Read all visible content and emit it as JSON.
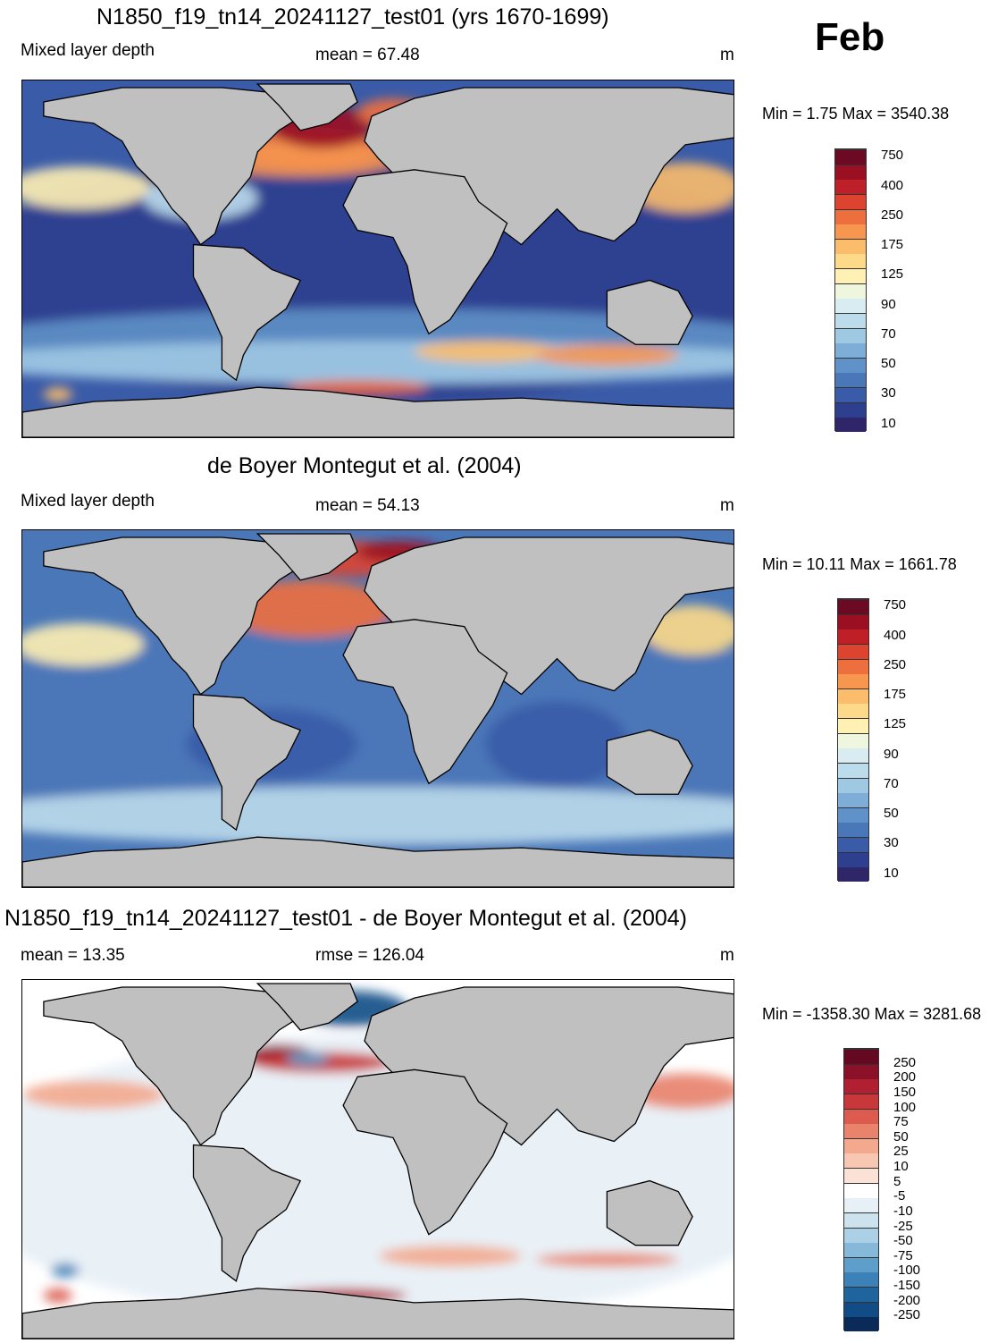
{
  "month": "Feb",
  "panels": [
    {
      "title": "N1850_f19_tn14_20241127_test01 (yrs 1670-1699)",
      "left_label": "Mixed layer depth",
      "center_label": "mean =  67.48",
      "unit": "m",
      "minmax": "Min =   1.75 Max = 3540.38"
    },
    {
      "title": "de Boyer Montegut et al. (2004)",
      "left_label": "Mixed layer depth",
      "center_label": "mean =  54.13",
      "unit": "m",
      "minmax": "Min =  10.11 Max = 1661.78"
    },
    {
      "title": "N1850_f19_tn14_20241127_test01 - de Boyer Montegut et al. (2004)",
      "left_label": "mean =  13.35",
      "center_label": "rmse = 126.04",
      "unit": "m",
      "minmax": "Min = -1358.30 Max = 3281.68"
    }
  ],
  "colorbars": {
    "absolute": {
      "colors": [
        "#2e2668",
        "#2f3f8f",
        "#3a5ba8",
        "#4a77b8",
        "#5f92c8",
        "#7eaed7",
        "#9fc8e3",
        "#bcdcec",
        "#d8ecf2",
        "#eef6dd",
        "#fff0b3",
        "#fdd98a",
        "#fbbc6b",
        "#f6964f",
        "#ee6f3e",
        "#dc4430",
        "#bf1f26",
        "#9a1022",
        "#6b0a22"
      ],
      "labels": [
        "10",
        "30",
        "50",
        "70",
        "90",
        "125",
        "175",
        "250",
        "400",
        "750"
      ]
    },
    "difference": {
      "colors": [
        "#0a2a5a",
        "#114c86",
        "#20649e",
        "#3c82b8",
        "#5e9ecb",
        "#86b8d9",
        "#acd0e6",
        "#cde2ef",
        "#e7f0f6",
        "#ffffff",
        "#fbe1d6",
        "#f8c7b1",
        "#f3a98d",
        "#e9836b",
        "#dc5a4e",
        "#c8383a",
        "#b02030",
        "#8a1127",
        "#650821"
      ],
      "labels": [
        "-250",
        "-200",
        "-150",
        "-100",
        "-75",
        "-50",
        "-25",
        "-10",
        "-5",
        "5",
        "10",
        "25",
        "50",
        "75",
        "100",
        "150",
        "200",
        "250"
      ]
    }
  },
  "colors": {
    "land": "#c0c0c0",
    "coast": "#000000"
  }
}
